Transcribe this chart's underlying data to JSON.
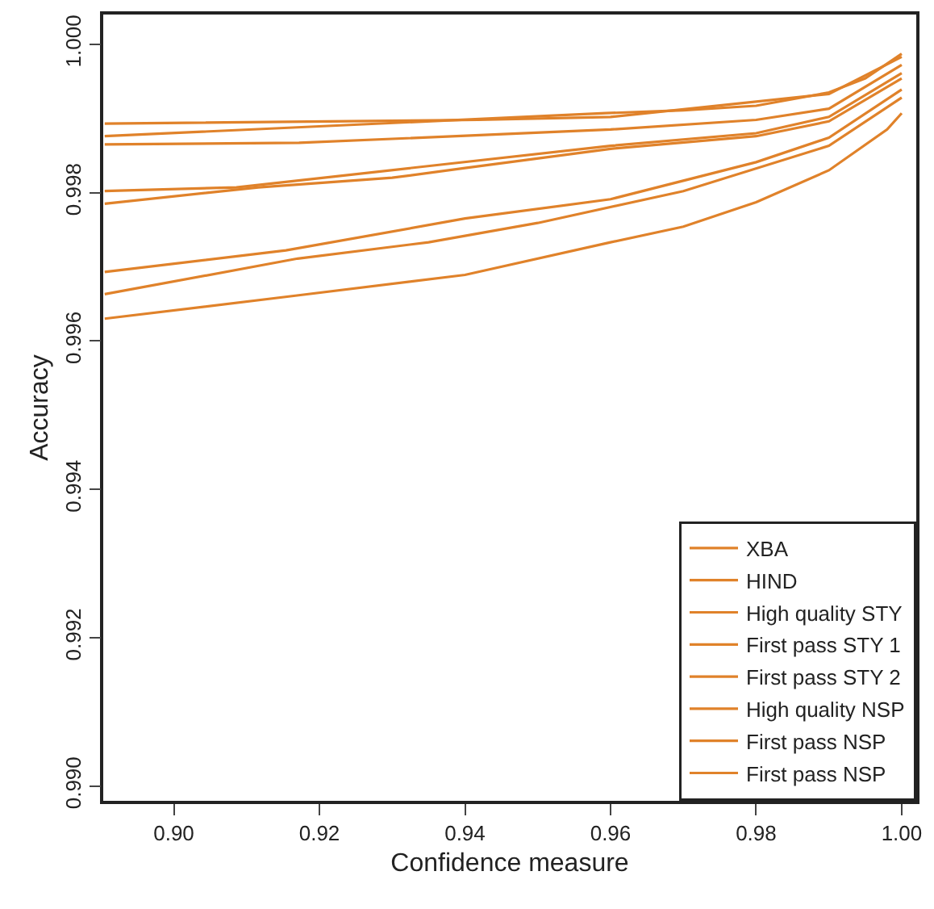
{
  "chart_data": {
    "type": "line",
    "xlabel": "Confidence measure",
    "ylabel": "Accuracy",
    "xlim": [
      0.8903,
      1.002
    ],
    "ylim": [
      0.9898,
      1.0004
    ],
    "xticks": [
      {
        "value": 0.9,
        "label": "0.90"
      },
      {
        "value": 0.92,
        "label": "0.92"
      },
      {
        "value": 0.94,
        "label": "0.94"
      },
      {
        "value": 0.96,
        "label": "0.96"
      },
      {
        "value": 0.98,
        "label": "0.98"
      },
      {
        "value": 1.0,
        "label": "1.00"
      }
    ],
    "yticks": [
      {
        "value": 0.99,
        "label": "0.990"
      },
      {
        "value": 0.992,
        "label": "0.992"
      },
      {
        "value": 0.994,
        "label": "0.994"
      },
      {
        "value": 0.996,
        "label": "0.996"
      },
      {
        "value": 0.998,
        "label": "0.998"
      },
      {
        "value": 1.0,
        "label": "1.000"
      }
    ],
    "grid": false,
    "legend": "bottom right",
    "series": [
      {
        "name": "XBA",
        "color": "#e0822a",
        "x": [
          0.8905,
          0.9418,
          0.96,
          0.99,
          1.0
        ],
        "values": [
          0.99893,
          0.99898,
          0.99902,
          0.99933,
          0.99983
        ]
      },
      {
        "name": "HIND",
        "color": "#e0822a",
        "x": [
          0.8905,
          0.9086,
          0.96,
          0.98,
          0.99,
          1.0
        ],
        "values": [
          0.99802,
          0.99807,
          0.99863,
          0.9988,
          0.99902,
          0.99961
        ]
      },
      {
        "name": "High quality STY",
        "color": "#e0822a",
        "x": [
          0.8905,
          0.9593,
          0.97,
          0.98,
          0.99,
          0.995,
          1.0
        ],
        "values": [
          0.99876,
          0.99907,
          0.99911,
          0.99917,
          0.99935,
          0.99954,
          0.99987
        ]
      },
      {
        "name": "First pass STY 1",
        "color": "#e0822a",
        "x": [
          0.8905,
          0.9116,
          0.93,
          0.94,
          0.96,
          0.98,
          0.99,
          1.0
        ],
        "values": [
          0.99785,
          0.99807,
          0.9982,
          0.99833,
          0.99859,
          0.99876,
          0.99896,
          0.99954
        ]
      },
      {
        "name": "First pass STY 2",
        "color": "#e0822a",
        "x": [
          0.8905,
          0.9154,
          0.94,
          0.96,
          0.98,
          0.99,
          1.0
        ],
        "values": [
          0.99693,
          0.99722,
          0.99765,
          0.99791,
          0.99841,
          0.99874,
          0.99939
        ]
      },
      {
        "name": "High quality NSP",
        "color": "#e0822a",
        "x": [
          0.8905,
          0.9172,
          0.96,
          0.98,
          0.99,
          1.0
        ],
        "values": [
          0.99865,
          0.99867,
          0.99885,
          0.99898,
          0.99913,
          0.99972
        ]
      },
      {
        "name": "First pass NSP",
        "color": "#e0822a",
        "x": [
          0.8905,
          0.917,
          0.935,
          0.95,
          0.97,
          0.99,
          1.0
        ],
        "values": [
          0.99663,
          0.99711,
          0.99733,
          0.99759,
          0.99802,
          0.99863,
          0.99928
        ]
      },
      {
        "name": "First pass NSP",
        "color": "#e0822a",
        "x": [
          0.8905,
          0.9167,
          0.94,
          0.96,
          0.97,
          0.98,
          0.99,
          0.998,
          1.0
        ],
        "values": [
          0.9963,
          0.99661,
          0.99689,
          0.99733,
          0.99754,
          0.99787,
          0.9983,
          0.99885,
          0.99907
        ]
      }
    ]
  }
}
